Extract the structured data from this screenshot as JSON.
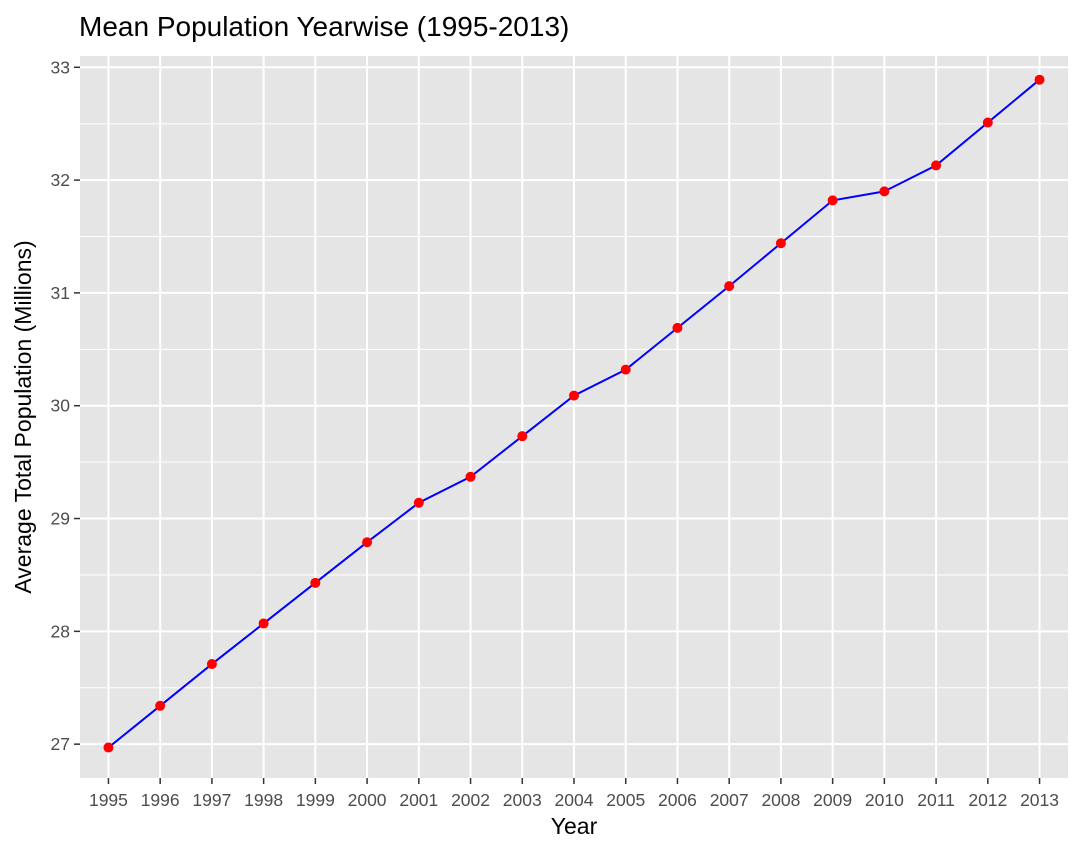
{
  "chart_data": {
    "type": "line",
    "title": "Mean Population Yearwise (1995-2013)",
    "xlabel": "Year",
    "ylabel": "Average Total Population (Millions)",
    "x": [
      1995,
      1996,
      1997,
      1998,
      1999,
      2000,
      2001,
      2002,
      2003,
      2004,
      2005,
      2006,
      2007,
      2008,
      2009,
      2010,
      2011,
      2012,
      2013
    ],
    "series": [
      {
        "values": [
          26.97,
          27.34,
          27.71,
          28.07,
          28.43,
          28.79,
          29.14,
          29.37,
          29.73,
          30.09,
          30.32,
          30.69,
          31.06,
          31.44,
          31.82,
          31.9,
          32.13,
          32.51,
          32.89
        ]
      }
    ],
    "yticks": [
      27,
      28,
      29,
      30,
      31,
      32,
      33
    ],
    "ylim": [
      26.7,
      33.1
    ],
    "grid": true,
    "colors": {
      "line": "#0000ff",
      "points": "#ff0000",
      "panel_background": "#e5e5e5",
      "grid": "#ffffff",
      "tick_text": "#4d4d4d"
    }
  }
}
